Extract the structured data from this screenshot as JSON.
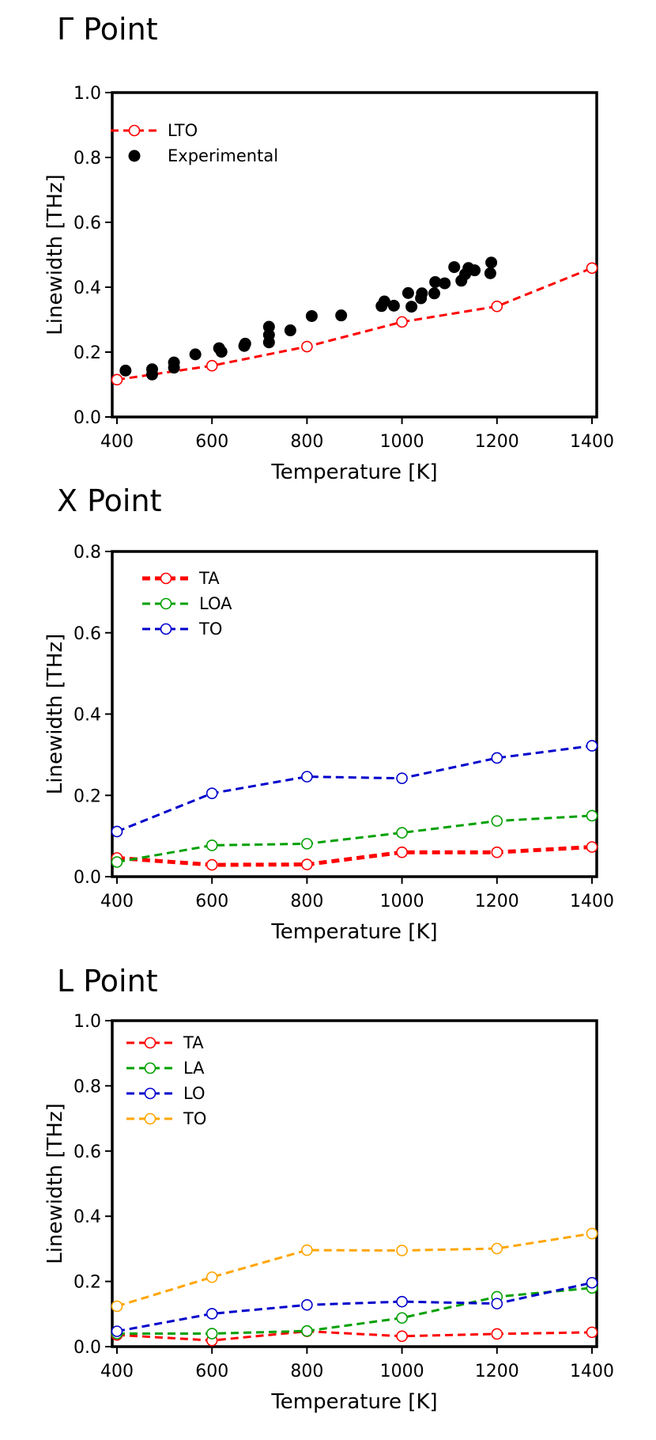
{
  "chart_data": [
    {
      "type": "scatter",
      "title": "Γ Point",
      "xlabel": "Temperature [K]",
      "ylabel": "Linewidth [THz]",
      "xlim": [
        390,
        1410
      ],
      "ylim": [
        0,
        1.0
      ],
      "xticks": [
        "400",
        "600",
        "800",
        "1000",
        "1200",
        "1400"
      ],
      "yticks": [
        "0.0",
        "0.2",
        "0.4",
        "0.6",
        "0.8",
        "1.0"
      ],
      "grid": false,
      "legend_position": "top-left",
      "series": [
        {
          "name": "LTO",
          "style": "dashed-line-open-circle",
          "color": "#ff0000",
          "x": [
            400,
            600,
            800,
            1000,
            1200,
            1400
          ],
          "y": [
            0.115,
            0.158,
            0.217,
            0.293,
            0.341,
            0.459
          ]
        },
        {
          "name": "Experimental",
          "style": "filled-circle",
          "color": "#000000",
          "x": [
            418,
            474,
            474,
            520,
            520,
            565,
            615,
            620,
            668,
            670,
            720,
            720,
            720,
            765,
            810,
            872,
            957,
            963,
            983,
            1013,
            1020,
            1040,
            1042,
            1068,
            1070,
            1090,
            1110,
            1125,
            1133,
            1140,
            1153,
            1186,
            1188
          ],
          "y": [
            0.143,
            0.131,
            0.147,
            0.152,
            0.168,
            0.193,
            0.212,
            0.201,
            0.219,
            0.226,
            0.23,
            0.253,
            0.278,
            0.267,
            0.311,
            0.313,
            0.342,
            0.356,
            0.343,
            0.382,
            0.34,
            0.366,
            0.381,
            0.381,
            0.416,
            0.412,
            0.462,
            0.42,
            0.44,
            0.459,
            0.452,
            0.443,
            0.476
          ]
        }
      ]
    },
    {
      "type": "line",
      "title": "X Point",
      "xlabel": "Temperature [K]",
      "ylabel": "Linewidth [THz]",
      "xlim": [
        390,
        1410
      ],
      "ylim": [
        0,
        0.8
      ],
      "xticks": [
        "400",
        "600",
        "800",
        "1000",
        "1200",
        "1400"
      ],
      "yticks": [
        "0.0",
        "0.2",
        "0.4",
        "0.6",
        "0.8"
      ],
      "grid": false,
      "legend_position": "top-left",
      "x": [
        400,
        600,
        800,
        1000,
        1200,
        1400
      ],
      "series": [
        {
          "name": "TA",
          "color": "#ff0000",
          "thick": true,
          "values": [
            0.046,
            0.029,
            0.03,
            0.06,
            0.06,
            0.073
          ]
        },
        {
          "name": "LOA",
          "color": "#00a000",
          "thick": false,
          "values": [
            0.036,
            0.077,
            0.081,
            0.108,
            0.137,
            0.15
          ]
        },
        {
          "name": "TO",
          "color": "#0000cc",
          "thick": false,
          "values": [
            0.111,
            0.205,
            0.246,
            0.242,
            0.292,
            0.322
          ]
        }
      ]
    },
    {
      "type": "line",
      "title": "L Point",
      "xlabel": "Temperature [K]",
      "ylabel": "Linewidth [THz]",
      "xlim": [
        390,
        1410
      ],
      "ylim": [
        0,
        1.0
      ],
      "xticks": [
        "400",
        "600",
        "800",
        "1000",
        "1200",
        "1400"
      ],
      "yticks": [
        "0.0",
        "0.2",
        "0.4",
        "0.6",
        "0.8",
        "1.0"
      ],
      "grid": false,
      "legend_position": "top-left",
      "x": [
        400,
        600,
        800,
        1000,
        1200,
        1400
      ],
      "series": [
        {
          "name": "TA",
          "color": "#ff0000",
          "thick": false,
          "values": [
            0.036,
            0.019,
            0.047,
            0.032,
            0.039,
            0.044
          ]
        },
        {
          "name": "LA",
          "color": "#00a000",
          "thick": false,
          "values": [
            0.04,
            0.04,
            0.048,
            0.088,
            0.153,
            0.18
          ]
        },
        {
          "name": "LO",
          "color": "#0000cc",
          "thick": false,
          "values": [
            0.047,
            0.101,
            0.128,
            0.138,
            0.132,
            0.196
          ]
        },
        {
          "name": "TO",
          "color": "#ffa500",
          "thick": false,
          "values": [
            0.124,
            0.213,
            0.296,
            0.295,
            0.301,
            0.347
          ]
        }
      ]
    }
  ]
}
